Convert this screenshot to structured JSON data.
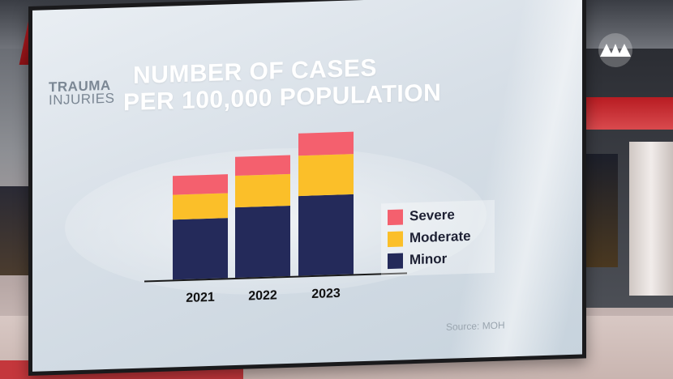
{
  "kicker": {
    "line1": "TRAUMA",
    "line2": "INJURIES"
  },
  "title": {
    "line1": "NUMBER OF CASES",
    "line2": "PER 100,000 POPULATION"
  },
  "source": "Source: MOH",
  "colors": {
    "severe": "#f4606e",
    "moderate": "#fbbf29",
    "minor": "#242a5a"
  },
  "chart_data": {
    "type": "bar",
    "stacked": true,
    "title": "NUMBER OF CASES PER 100,000 POPULATION",
    "categories": [
      "2021",
      "2022",
      "2023"
    ],
    "series": [
      {
        "name": "Minor",
        "values": [
          70,
          82,
          93
        ]
      },
      {
        "name": "Moderate",
        "values": [
          29,
          37,
          47
        ]
      },
      {
        "name": "Severe",
        "values": [
          22,
          22,
          26
        ]
      }
    ],
    "ylim": [
      0,
      170
    ],
    "grid": false,
    "legend": "right",
    "legend_order": [
      "Severe",
      "Moderate",
      "Minor"
    ]
  }
}
